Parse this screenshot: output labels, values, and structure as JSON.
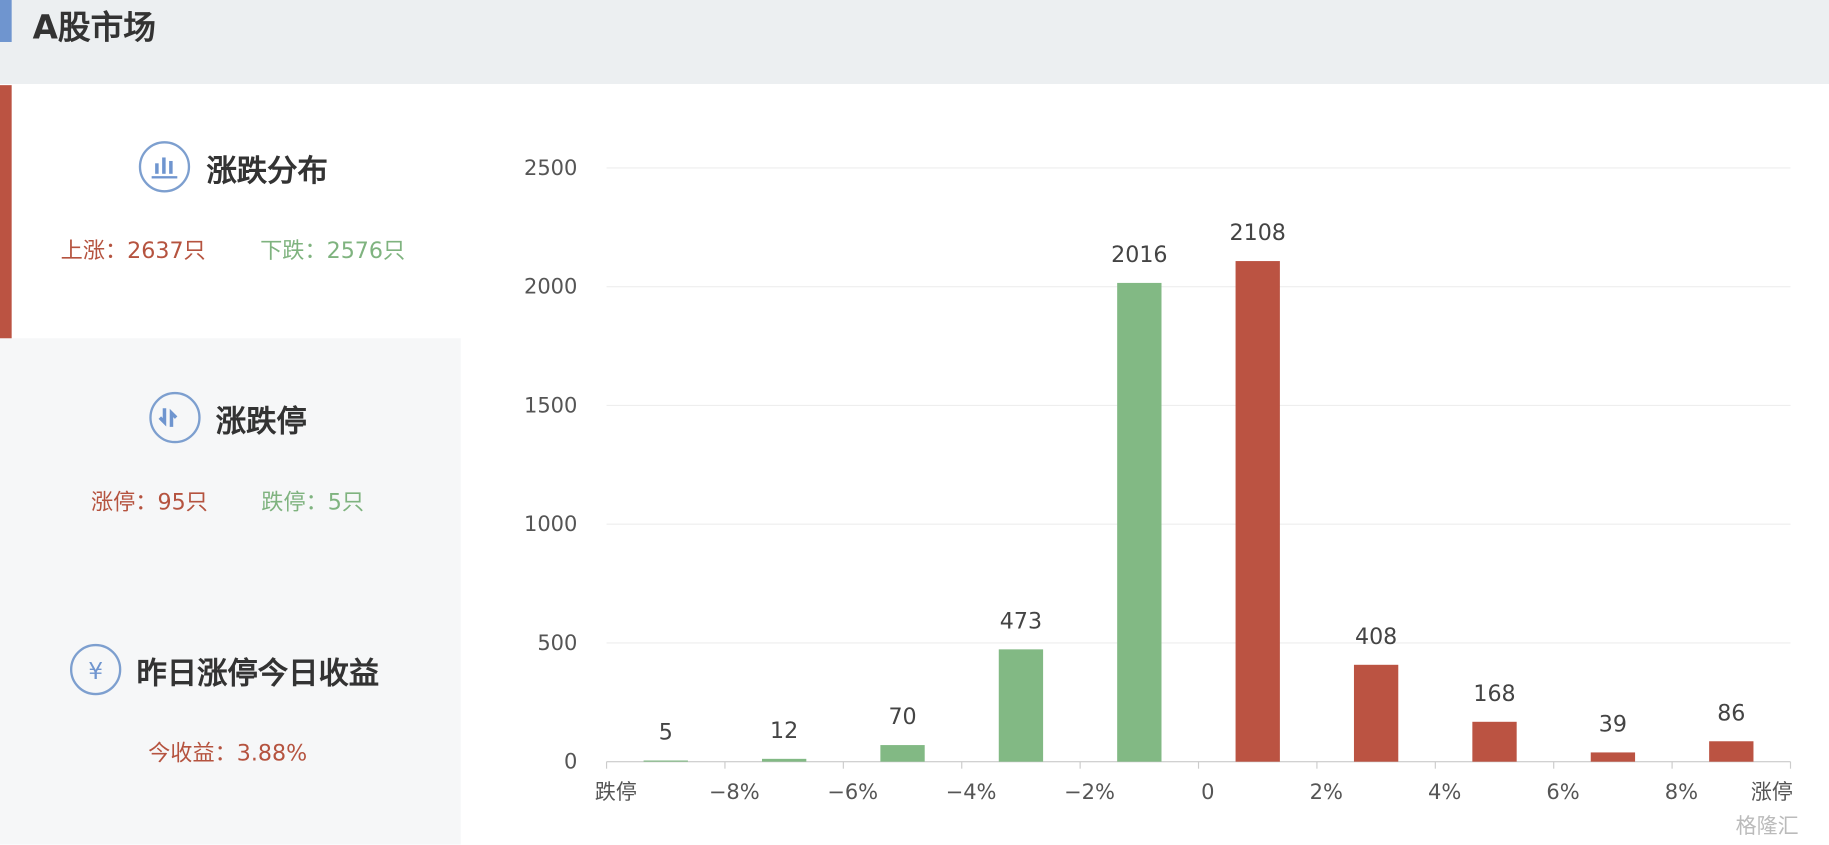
{
  "header": {
    "title": "A股市场"
  },
  "panels": [
    {
      "title": "涨跌分布",
      "stats": [
        "上涨：2637只",
        "下跌：2576只"
      ]
    },
    {
      "title": "涨跌停",
      "stats": [
        "涨停：95只",
        "跌停：5只"
      ]
    },
    {
      "title": "昨日涨停今日收益",
      "stats": [
        "今收益：3.88%"
      ]
    }
  ],
  "chart_data": {
    "type": "bar",
    "xticks": [
      "跌停",
      "−8%",
      "−6%",
      "−4%",
      "−2%",
      "0",
      "2%",
      "4%",
      "6%",
      "8%",
      "涨停"
    ],
    "values": [
      5,
      12,
      70,
      473,
      2016,
      2108,
      408,
      168,
      39,
      86
    ],
    "colors": [
      "#82b984",
      "#82b984",
      "#82b984",
      "#82b984",
      "#82b984",
      "#bb5342",
      "#bb5342",
      "#bb5342",
      "#bb5342",
      "#bb5342"
    ],
    "ylim": [
      0,
      2500
    ],
    "yticks": [
      0,
      500,
      1000,
      1500,
      2000,
      2500
    ],
    "grid": true
  },
  "watermark": "格隆汇"
}
